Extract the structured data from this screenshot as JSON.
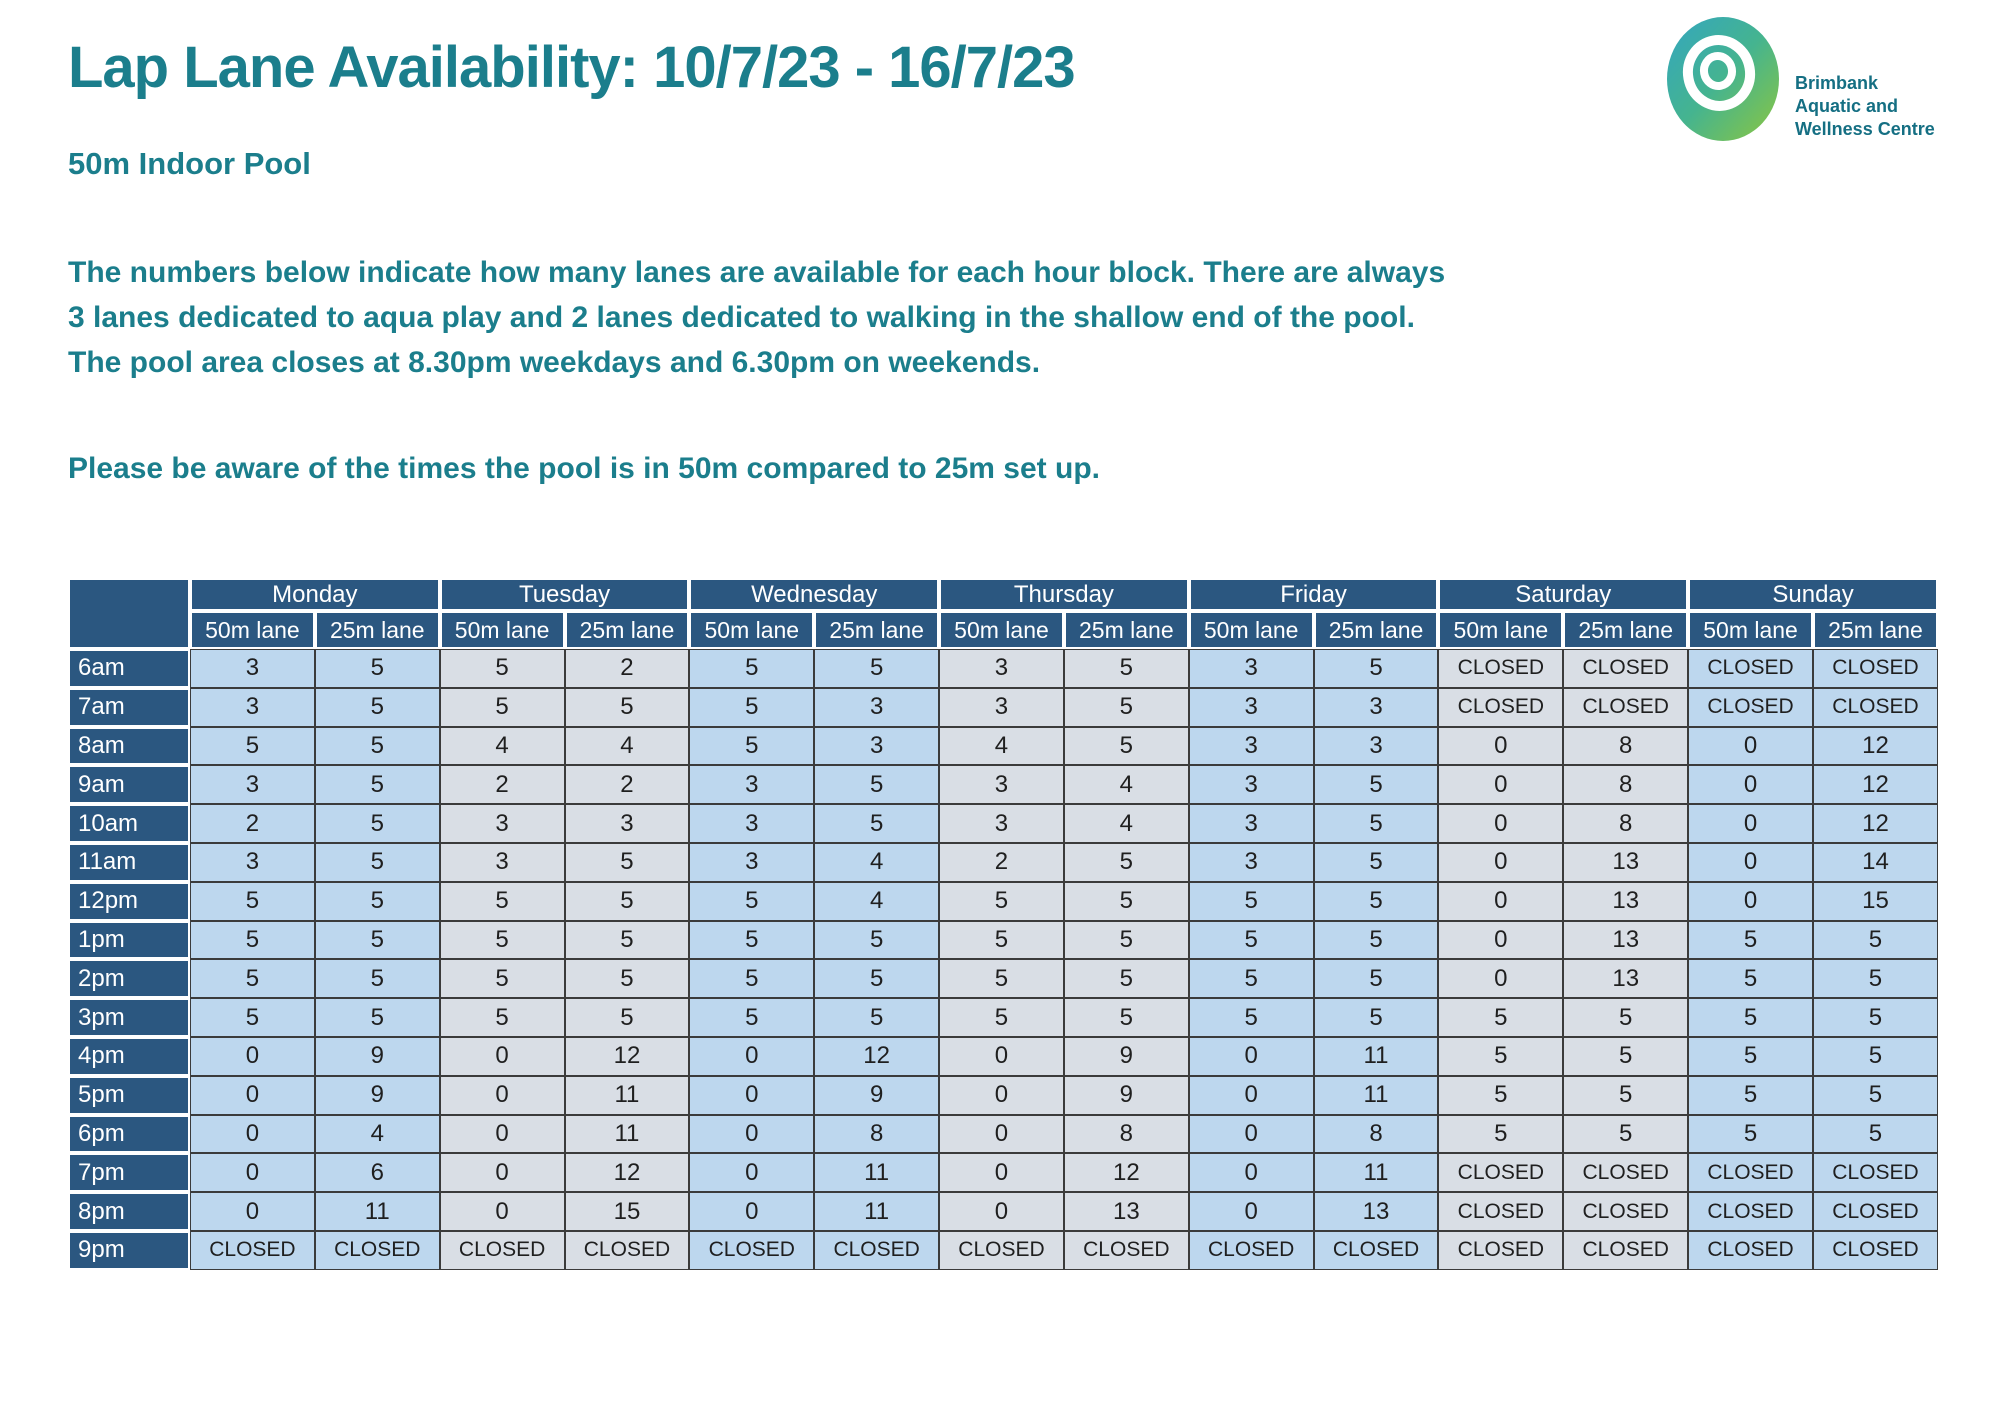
{
  "page": {
    "title": "Lap Lane Availability: 10/7/23 - 16/7/23",
    "subtitle": "50m Indoor Pool",
    "intro_lines": [
      "The numbers below indicate how many lanes are available for each hour block. There are always",
      "3 lanes dedicated to aqua play and 2 lanes dedicated to walking in the shallow end of the pool.",
      "The pool area closes at 8.30pm weekdays and 6.30pm on weekends."
    ],
    "note": "Please be aware of the times the pool is in 50m compared to 25m set up."
  },
  "logo": {
    "lines": [
      "Brimbank",
      "Aquatic and",
      "Wellness Centre"
    ]
  },
  "colors": {
    "teal_text": "#1B7E8C",
    "header_blue": "#2B5780",
    "day_blue": "#BDD7EE",
    "day_gray": "#D9DEE5",
    "cell_border": "#3B3B3B",
    "logo_teal": "#33A6C0",
    "logo_green": "#8CC63F"
  },
  "chart_data": {
    "type": "table",
    "days": [
      "Monday",
      "Tuesday",
      "Wednesday",
      "Thursday",
      "Friday",
      "Saturday",
      "Sunday"
    ],
    "lane_headers": [
      "50m lane",
      "25m lane"
    ],
    "times": [
      "6am",
      "7am",
      "8am",
      "9am",
      "10am",
      "11am",
      "12pm",
      "1pm",
      "2pm",
      "3pm",
      "4pm",
      "5pm",
      "6pm",
      "7pm",
      "8pm",
      "9pm"
    ],
    "rows": [
      {
        "time": "6am",
        "values": [
          "3",
          "5",
          "5",
          "2",
          "5",
          "5",
          "3",
          "5",
          "3",
          "5",
          "CLOSED",
          "CLOSED",
          "CLOSED",
          "CLOSED"
        ]
      },
      {
        "time": "7am",
        "values": [
          "3",
          "5",
          "5",
          "5",
          "5",
          "3",
          "3",
          "5",
          "3",
          "3",
          "CLOSED",
          "CLOSED",
          "CLOSED",
          "CLOSED"
        ]
      },
      {
        "time": "8am",
        "values": [
          "5",
          "5",
          "4",
          "4",
          "5",
          "3",
          "4",
          "5",
          "3",
          "3",
          "0",
          "8",
          "0",
          "12"
        ]
      },
      {
        "time": "9am",
        "values": [
          "3",
          "5",
          "2",
          "2",
          "3",
          "5",
          "3",
          "4",
          "3",
          "5",
          "0",
          "8",
          "0",
          "12"
        ]
      },
      {
        "time": "10am",
        "values": [
          "2",
          "5",
          "3",
          "3",
          "3",
          "5",
          "3",
          "4",
          "3",
          "5",
          "0",
          "8",
          "0",
          "12"
        ]
      },
      {
        "time": "11am",
        "values": [
          "3",
          "5",
          "3",
          "5",
          "3",
          "4",
          "2",
          "5",
          "3",
          "5",
          "0",
          "13",
          "0",
          "14"
        ]
      },
      {
        "time": "12pm",
        "values": [
          "5",
          "5",
          "5",
          "5",
          "5",
          "4",
          "5",
          "5",
          "5",
          "5",
          "0",
          "13",
          "0",
          "15"
        ]
      },
      {
        "time": "1pm",
        "values": [
          "5",
          "5",
          "5",
          "5",
          "5",
          "5",
          "5",
          "5",
          "5",
          "5",
          "0",
          "13",
          "5",
          "5"
        ]
      },
      {
        "time": "2pm",
        "values": [
          "5",
          "5",
          "5",
          "5",
          "5",
          "5",
          "5",
          "5",
          "5",
          "5",
          "0",
          "13",
          "5",
          "5"
        ]
      },
      {
        "time": "3pm",
        "values": [
          "5",
          "5",
          "5",
          "5",
          "5",
          "5",
          "5",
          "5",
          "5",
          "5",
          "5",
          "5",
          "5",
          "5"
        ]
      },
      {
        "time": "4pm",
        "values": [
          "0",
          "9",
          "0",
          "12",
          "0",
          "12",
          "0",
          "9",
          "0",
          "11",
          "5",
          "5",
          "5",
          "5"
        ]
      },
      {
        "time": "5pm",
        "values": [
          "0",
          "9",
          "0",
          "11",
          "0",
          "9",
          "0",
          "9",
          "0",
          "11",
          "5",
          "5",
          "5",
          "5"
        ]
      },
      {
        "time": "6pm",
        "values": [
          "0",
          "4",
          "0",
          "11",
          "0",
          "8",
          "0",
          "8",
          "0",
          "8",
          "5",
          "5",
          "5",
          "5"
        ]
      },
      {
        "time": "7pm",
        "values": [
          "0",
          "6",
          "0",
          "12",
          "0",
          "11",
          "0",
          "12",
          "0",
          "11",
          "CLOSED",
          "CLOSED",
          "CLOSED",
          "CLOSED"
        ]
      },
      {
        "time": "8pm",
        "values": [
          "0",
          "11",
          "0",
          "15",
          "0",
          "11",
          "0",
          "13",
          "0",
          "13",
          "CLOSED",
          "CLOSED",
          "CLOSED",
          "CLOSED"
        ]
      },
      {
        "time": "9pm",
        "values": [
          "CLOSED",
          "CLOSED",
          "CLOSED",
          "CLOSED",
          "CLOSED",
          "CLOSED",
          "CLOSED",
          "CLOSED",
          "CLOSED",
          "CLOSED",
          "CLOSED",
          "CLOSED",
          "CLOSED",
          "CLOSED"
        ]
      }
    ]
  }
}
